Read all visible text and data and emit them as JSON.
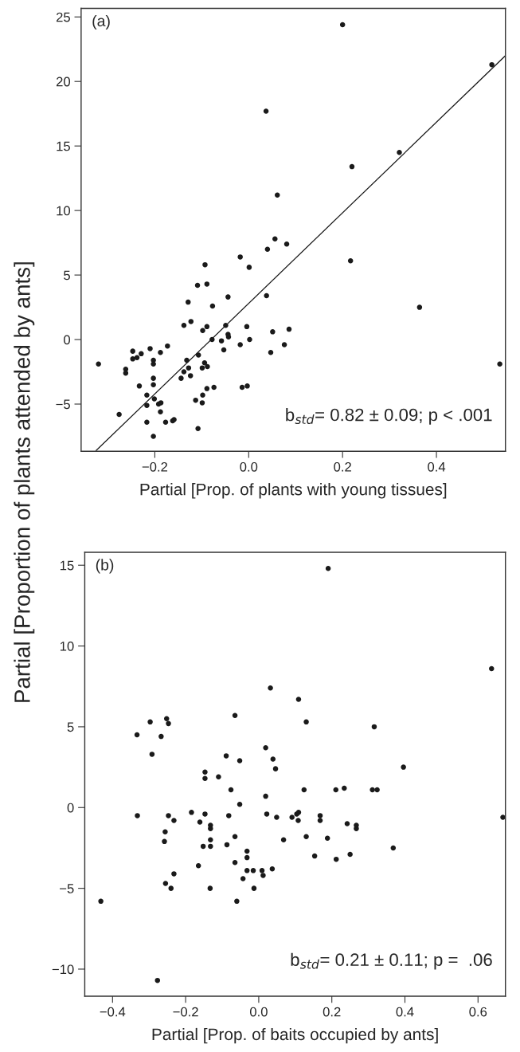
{
  "chart_data": [
    {
      "type": "scatter",
      "xlabel": "Partial [Prop. of plants with young tissues]",
      "ylabel": "Partial [Proportion of plants attended by ants]",
      "annotations": [
        "(a)",
        "b$_{std}$= 0.82 ± 0.09; p < .001"
      ],
      "xlim": [
        -0.357,
        0.547
      ],
      "ylim": [
        -8.66,
        25.66
      ],
      "xticks": [
        {
          "value": -0.2,
          "label": "−0.2"
        },
        {
          "value": 0.0,
          "label": "0.0"
        },
        {
          "value": 0.2,
          "label": "0.2"
        },
        {
          "value": 0.4,
          "label": "0.4"
        }
      ],
      "yticks": [
        -5,
        0,
        5,
        10,
        15,
        20,
        25
      ],
      "grid": false,
      "series": [
        {
          "marker": "circle",
          "color": "#1a1a1a",
          "x": [
            0.2,
            0.037,
            0.518,
            0.321,
            0.22,
            0.061,
            0.056,
            0.081,
            0.04,
            -0.018,
            0.001,
            -0.093,
            -0.109,
            -0.089,
            0.038,
            -0.044,
            -0.129,
            -0.077,
            -0.138,
            -0.123,
            -0.089,
            -0.098,
            -0.049,
            -0.004,
            0.051,
            0.086,
            -0.044,
            -0.043,
            -0.078,
            -0.058,
            0.002,
            -0.018,
            0.076,
            -0.053,
            0.047,
            -0.32,
            -0.247,
            -0.21,
            -0.173,
            -0.229,
            -0.247,
            -0.238,
            -0.188,
            -0.203,
            -0.203,
            -0.107,
            -0.262,
            -0.262,
            -0.132,
            -0.128,
            -0.138,
            -0.144,
            -0.124,
            -0.094,
            -0.099,
            -0.088,
            -0.203,
            -0.203,
            -0.233,
            -0.217,
            -0.217,
            -0.201,
            -0.192,
            -0.187,
            -0.188,
            -0.276,
            -0.217,
            -0.203,
            -0.177,
            -0.162,
            -0.159,
            -0.108,
            -0.113,
            -0.099,
            -0.098,
            -0.089,
            -0.074,
            -0.014,
            -0.003,
            0.364,
            0.535,
            0.217
          ],
          "values": [
            24.4,
            17.7,
            21.3,
            14.5,
            13.4,
            11.2,
            7.8,
            7.4,
            7.0,
            6.4,
            5.6,
            5.8,
            4.2,
            4.3,
            3.4,
            3.3,
            2.9,
            2.6,
            1.1,
            1.4,
            1.0,
            0.7,
            1.1,
            1.0,
            0.6,
            0.8,
            0.4,
            0.2,
            0.0,
            -0.1,
            0.0,
            -0.4,
            -0.4,
            -0.8,
            -1.0,
            -1.9,
            -0.9,
            -0.7,
            -0.5,
            -1.1,
            -1.5,
            -1.4,
            -1.0,
            -1.6,
            -1.9,
            -1.2,
            -2.3,
            -2.6,
            -1.6,
            -2.2,
            -2.5,
            -3.0,
            -2.8,
            -1.8,
            -2.2,
            -2.1,
            -3.0,
            -3.5,
            -3.6,
            -4.3,
            -5.1,
            -4.6,
            -5.0,
            -4.9,
            -5.6,
            -5.8,
            -6.4,
            -7.5,
            -6.4,
            -6.3,
            -6.2,
            -6.9,
            -4.7,
            -4.9,
            -4.3,
            -3.8,
            -3.7,
            -3.7,
            -3.6,
            2.5,
            -1.9,
            6.1
          ]
        },
        {
          "type": "line",
          "color": "#1a1a1a",
          "line_style": "solid",
          "x": [
            -0.325,
            0.547
          ],
          "values": [
            -8.6,
            22.0
          ]
        }
      ]
    },
    {
      "type": "scatter",
      "xlabel": "Partial [Prop. of baits occupied by ants]",
      "annotations": [
        "(b)",
        "b$_{std}$= 0.21 ± 0.11; p =  .06"
      ],
      "xlim": [
        -0.476,
        0.675
      ],
      "ylim": [
        -11.68,
        15.8
      ],
      "xticks": [
        {
          "value": -0.4,
          "label": "−0.4"
        },
        {
          "value": -0.2,
          "label": "−0.2"
        },
        {
          "value": 0.0,
          "label": "0.0"
        },
        {
          "value": 0.2,
          "label": "0.2"
        },
        {
          "value": 0.4,
          "label": "0.4"
        },
        {
          "value": 0.6,
          "label": "0.6"
        }
      ],
      "yticks": [
        -10,
        -5,
        0,
        5,
        10,
        15
      ],
      "grid": false,
      "series": [
        {
          "marker": "circle",
          "color": "#1a1a1a",
          "x": [
            0.19,
            0.637,
            0.032,
            0.109,
            -0.065,
            -0.252,
            -0.297,
            -0.247,
            0.13,
            -0.333,
            -0.267,
            -0.292,
            0.019,
            -0.089,
            0.039,
            -0.052,
            0.046,
            -0.147,
            -0.147,
            -0.11,
            -0.076,
            0.124,
            0.019,
            -0.052,
            -0.332,
            -0.247,
            -0.232,
            -0.184,
            -0.147,
            -0.161,
            -0.082,
            0.022,
            0.049,
            0.091,
            0.104,
            0.109,
            0.108,
            0.168,
            0.168,
            -0.256,
            -0.258,
            -0.132,
            -0.132,
            -0.132,
            -0.152,
            -0.132,
            -0.087,
            -0.065,
            0.068,
            0.13,
            0.188,
            -0.032,
            -0.032,
            0.153,
            -0.065,
            -0.165,
            -0.232,
            -0.032,
            -0.015,
            0.009,
            0.012,
            0.037,
            0.316,
            0.396,
            0.211,
            0.234,
            0.311,
            0.324,
            0.242,
            0.267,
            0.267,
            0.212,
            0.25,
            0.368,
            0.668,
            -0.432,
            -0.277,
            -0.255,
            -0.24,
            -0.133,
            -0.06,
            -0.043,
            -0.013
          ],
          "values": [
            14.8,
            8.6,
            7.4,
            6.7,
            5.7,
            5.5,
            5.3,
            5.2,
            5.3,
            4.5,
            4.4,
            3.3,
            3.7,
            3.2,
            3.0,
            2.9,
            2.4,
            2.2,
            1.8,
            1.9,
            1.1,
            1.1,
            0.7,
            0.2,
            -0.5,
            -0.5,
            -0.8,
            -0.3,
            -0.4,
            -0.9,
            -0.5,
            -0.4,
            -0.6,
            -0.6,
            -0.4,
            -0.3,
            -0.8,
            -0.5,
            -0.8,
            -1.5,
            -2.1,
            -1.1,
            -1.3,
            -2.0,
            -2.4,
            -2.4,
            -2.3,
            -1.8,
            -2.0,
            -1.8,
            -1.9,
            -2.7,
            -3.1,
            -3.0,
            -3.4,
            -3.6,
            -4.1,
            -3.9,
            -3.9,
            -3.9,
            -4.2,
            -3.8,
            5.0,
            2.5,
            1.1,
            1.2,
            1.1,
            1.1,
            -1.0,
            -1.1,
            -1.3,
            -3.2,
            -2.9,
            -2.5,
            -0.6,
            -5.8,
            -10.7,
            -4.7,
            -5.0,
            -5.0,
            -5.8,
            -4.4,
            -5.0
          ]
        }
      ]
    }
  ]
}
